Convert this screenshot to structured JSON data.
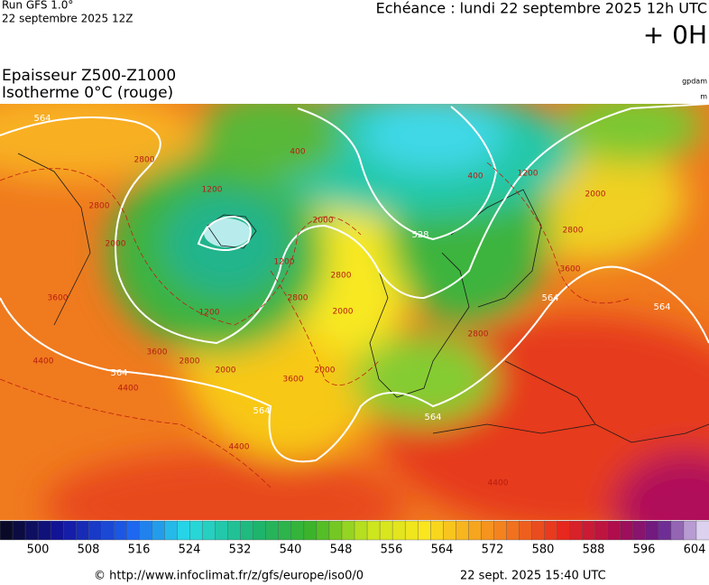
{
  "header": {
    "run": "Run GFS 1.0°",
    "date": "22 septembre 2025 12Z",
    "echeance": "Echéance : lundi 22 septembre 2025 12h UTC",
    "offset": "+ 0H"
  },
  "title": {
    "line1": "Epaisseur Z500-Z1000",
    "line2": "Isotherme 0°C (rouge)"
  },
  "units": {
    "gpdam": "gpdam",
    "m": "m"
  },
  "map": {
    "thickness_labels": [
      564,
      528,
      564,
      564,
      564,
      564,
      564
    ],
    "isotherm_labels": [
      2800,
      1200,
      400,
      400,
      1200,
      2000,
      2800,
      3600,
      2000,
      2800,
      2000,
      2800,
      1200,
      1200,
      2800,
      3600,
      2000,
      3600,
      2000,
      4400,
      4400,
      4400,
      3600,
      2800,
      4400,
      2800,
      2000
    ]
  },
  "colorbar": {
    "ticks": [
      500,
      508,
      516,
      524,
      532,
      540,
      548,
      556,
      564,
      572,
      580,
      588,
      596,
      604
    ]
  },
  "footer": {
    "source": "© http://www.infoclimat.fr/z/gfs/europe/iso0/0",
    "timestamp": "22 sept. 2025 15:40 UTC"
  }
}
